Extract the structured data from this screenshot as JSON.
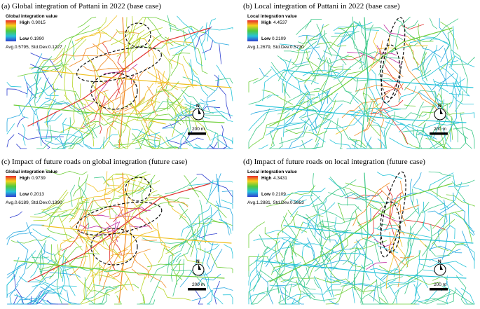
{
  "panels": [
    {
      "title": "(a) Global integration of Pattani in 2022 (base case)",
      "legend_title": "Global integration value",
      "high_label": "High",
      "high_value": "0.9015",
      "low_label": "Low",
      "low_value": "0.1990",
      "stats": "Avg.0.5795, Std.Dev.0.1227",
      "north": "N",
      "scale": "200 m"
    },
    {
      "title": "(b) Local integration of Pattani in 2022 (base case)",
      "legend_title": "Local integration value",
      "high_label": "High",
      "high_value": "4.4537",
      "low_label": "Low",
      "low_value": "0.2109",
      "stats": "Avg.1.2679, Std.Dev.0.5730",
      "north": "N",
      "scale": "200 m"
    },
    {
      "title": "(c) Impact of future roads on global integration (future case)",
      "legend_title": "Global integration value",
      "high_label": "High",
      "high_value": "0.9739",
      "low_label": "Low",
      "low_value": "0.2013",
      "stats": "Avg.0.6189, Std.Dev.0.1390",
      "north": "N",
      "scale": "200 m"
    },
    {
      "title": "(d) Impact of future roads on local integration (future case)",
      "legend_title": "Local integration value",
      "high_label": "High",
      "high_value": "4.3431",
      "low_label": "Low",
      "low_value": "0.2109",
      "stats": "Avg.1.2881, Std.Dev.0.5853",
      "north": "N",
      "scale": "200 m"
    }
  ]
}
